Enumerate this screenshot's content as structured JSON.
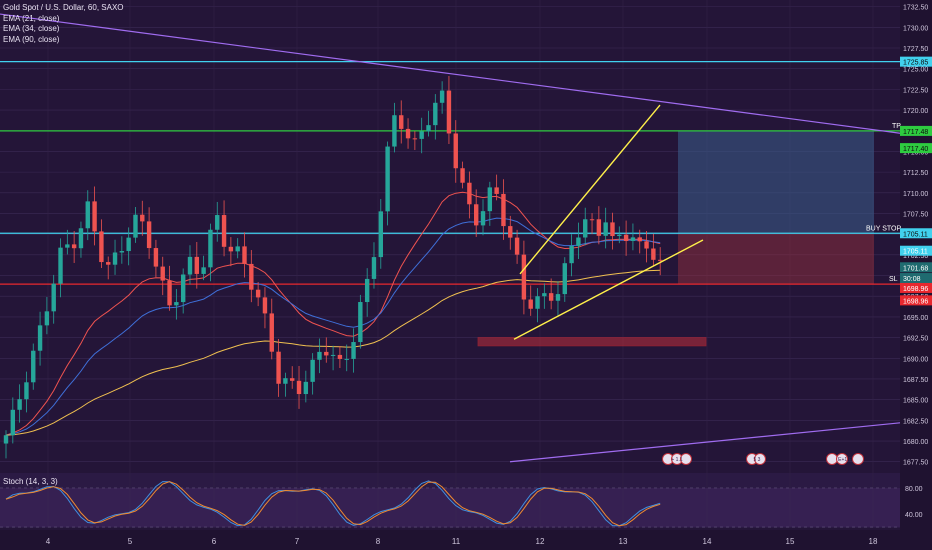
{
  "legend": {
    "instrument": "Gold Spot / U.S. Dollar, 60, SAXO",
    "ema21": "EMA (21, close)",
    "ema34": "EMA (34, close)",
    "ema90": "EMA (90, close)"
  },
  "stoch_label": "Stoch (14, 3, 3)",
  "labels": {
    "tp": "TP",
    "buy_stop": "BUY STOP",
    "sl": "SL"
  },
  "badges": [
    "1725.85",
    "1717.48",
    "1717.40",
    "1705.11",
    "1705.11",
    "1701.68",
    "30:08",
    "1698.96",
    "1698.96"
  ],
  "event_badges": [
    "+ 1.1",
    "5 3",
    "E+1 E"
  ],
  "colors": {
    "background": "#241538",
    "bull": "#26a69a",
    "bear": "#ef5350",
    "cyan_line": "#41d1ee",
    "green_line": "#2ecc40",
    "red_line": "#e8282e",
    "trend_yellow": "#fff04a",
    "channel_purple": "#a06cf0",
    "ema21": "#ef5350",
    "ema34": "#3f6fd8",
    "ema90": "#f0c050"
  },
  "chart_data": [
    {
      "type": "candlestick",
      "title": "Gold Spot / U.S. Dollar, 60, SAXO",
      "x_ticks": [
        "4",
        "5",
        "6",
        "7",
        "8",
        "11",
        "12",
        "13",
        "14",
        "15",
        "18"
      ],
      "y_ticks": [
        1677.5,
        1680.0,
        1682.5,
        1685.0,
        1687.5,
        1690.0,
        1692.5,
        1695.0,
        1697.5,
        1700.0,
        1702.5,
        1705.0,
        1707.5,
        1710.0,
        1712.5,
        1715.0,
        1717.5,
        1720.0,
        1722.5,
        1725.0,
        1727.5,
        1730.0,
        1732.5
      ],
      "ylim": [
        1676.5,
        1733.3
      ],
      "horizontal_levels": [
        {
          "price": 1725.85,
          "color": "cyan"
        },
        {
          "price": 1717.48,
          "color": "green",
          "label": "TP"
        },
        {
          "price": 1705.11,
          "color": "cyan",
          "label": "BUY STOP"
        },
        {
          "price": 1698.96,
          "color": "red",
          "label": "SL"
        }
      ],
      "price_path": [
        [
          1,
          1680.0
        ],
        [
          2,
          1683.0
        ],
        [
          3,
          1688.0
        ],
        [
          4,
          1691.0
        ],
        [
          5,
          1694.0
        ],
        [
          6,
          1698.0
        ],
        [
          7,
          1702.0
        ],
        [
          8,
          1704.0
        ],
        [
          9,
          1706.0
        ],
        [
          10,
          1708.0
        ],
        [
          11,
          1704.0
        ],
        [
          12,
          1700.0
        ],
        [
          13,
          1702.0
        ],
        [
          14,
          1705.0
        ],
        [
          15,
          1707.0
        ],
        [
          16,
          1705.5
        ],
        [
          17,
          1703.0
        ],
        [
          18,
          1699.0
        ],
        [
          19,
          1697.0
        ],
        [
          20,
          1699.0
        ],
        [
          21,
          1701.0
        ],
        [
          22,
          1700.0
        ],
        [
          23,
          1702.0
        ],
        [
          24,
          1708.0
        ],
        [
          25,
          1705.0
        ],
        [
          26,
          1703.0
        ],
        [
          27,
          1701.0
        ],
        [
          28,
          1699.0
        ],
        [
          29,
          1697.0
        ],
        [
          30,
          1693.0
        ],
        [
          31,
          1688.0
        ],
        [
          32,
          1686.0
        ],
        [
          33,
          1685.5
        ],
        [
          34,
          1688.0
        ],
        [
          35,
          1690.0
        ],
        [
          36,
          1692.0
        ],
        [
          37,
          1690.0
        ],
        [
          38,
          1687.5
        ],
        [
          39,
          1692.0
        ],
        [
          40,
          1697.0
        ],
        [
          41,
          1700.0
        ],
        [
          42,
          1706.0
        ],
        [
          43,
          1714.0
        ],
        [
          44,
          1720.0
        ],
        [
          45,
          1718.0
        ],
        [
          46,
          1716.0
        ],
        [
          47,
          1718.0
        ],
        [
          48,
          1719.5
        ],
        [
          49,
          1721.0
        ],
        [
          50,
          1717.0
        ],
        [
          51,
          1712.0
        ],
        [
          52,
          1708.0
        ],
        [
          53,
          1706.0
        ],
        [
          54,
          1709.0
        ],
        [
          55,
          1710.0
        ],
        [
          56,
          1707.0
        ],
        [
          57,
          1703.0
        ],
        [
          58,
          1697.0
        ],
        [
          59,
          1696.0
        ],
        [
          60,
          1697.0
        ],
        [
          61,
          1698.5
        ],
        [
          62,
          1699.0
        ],
        [
          63,
          1702.0
        ],
        [
          64,
          1705.0
        ],
        [
          65,
          1707.0
        ],
        [
          66,
          1705.0
        ],
        [
          67,
          1708.0
        ],
        [
          68,
          1703.0
        ],
        [
          69,
          1704.0
        ],
        [
          70,
          1705.0
        ],
        [
          71,
          1703.0
        ],
        [
          72,
          1704.0
        ],
        [
          73,
          1702.0
        ]
      ],
      "stoch_ylim": [
        20,
        100
      ],
      "stoch_y_ticks": [
        40.0,
        80.0
      ]
    }
  ]
}
